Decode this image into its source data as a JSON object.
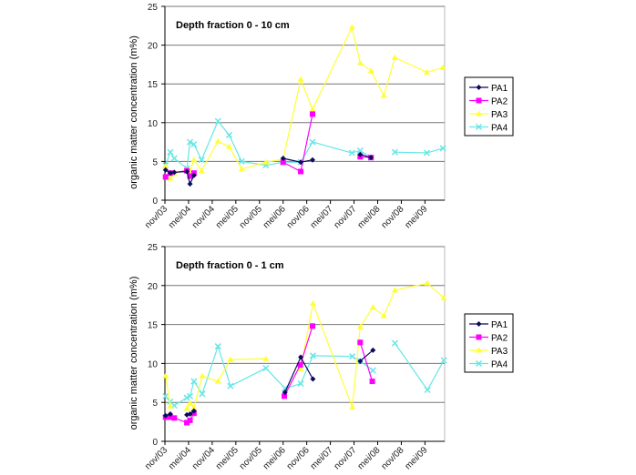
{
  "chart_data": [
    {
      "type": "line",
      "title": "Depth fraction  0 - 10 cm",
      "xlabel": "",
      "ylabel": "organic matter concentration (m%)",
      "ylim": [
        0,
        25
      ],
      "yticks": [
        "0",
        "5",
        "10",
        "15",
        "20",
        "25"
      ],
      "xticks": [
        "nov/03",
        "mei/04",
        "nov/04",
        "mei/05",
        "nov/05",
        "mei/06",
        "nov/06",
        "mei/07",
        "nov/07",
        "mei/08",
        "nov/08",
        "mei/09"
      ],
      "grid": "horizontal",
      "legend": "right",
      "series": [
        {
          "name": "PA1",
          "color": "#0b0b5c",
          "marker": "diamond",
          "points": [
            [
              "2003-11-06",
              3.9
            ],
            [
              "2003-12-12",
              3.5
            ],
            [
              "2004-01-12",
              3.6
            ],
            [
              "2004-04-18",
              3.7
            ],
            [
              "2004-05-12",
              2.1
            ],
            [
              "2004-06-12",
              3.2
            ],
            null,
            [
              "2006-05-01",
              5.4
            ],
            [
              "2006-09-15",
              4.9
            ],
            [
              "2006-12-15",
              5.2
            ],
            null,
            [
              "2007-12-18",
              5.9
            ],
            [
              "2008-03-10",
              5.5
            ]
          ]
        },
        {
          "name": "PA2",
          "color": "#ff00ff",
          "marker": "square",
          "points": [
            [
              "2003-11-06",
              3.0
            ],
            [
              "2003-12-12",
              3.5
            ],
            [
              "2004-04-18",
              3.8
            ],
            [
              "2004-05-12",
              3.1
            ],
            [
              "2004-06-12",
              3.5
            ],
            null,
            [
              "2006-05-01",
              4.9
            ],
            [
              "2006-09-15",
              3.7
            ],
            [
              "2006-12-15",
              11.1
            ],
            null,
            [
              "2007-12-18",
              5.6
            ],
            [
              "2008-03-10",
              5.5
            ]
          ]
        },
        {
          "name": "PA3",
          "color": "#ffff33",
          "marker": "triangle",
          "points": [
            [
              "2003-11-06",
              4.4
            ],
            [
              "2003-12-12",
              2.8
            ],
            [
              "2004-01-12",
              3.4
            ],
            [
              "2004-04-18",
              3.9
            ],
            [
              "2004-05-12",
              3.8
            ],
            [
              "2004-06-12",
              5.2
            ],
            [
              "2004-08-10",
              3.8
            ],
            [
              "2004-12-15",
              7.6
            ],
            [
              "2005-03-10",
              6.9
            ],
            [
              "2005-06-15",
              4.0
            ],
            [
              "2005-12-20",
              4.9
            ],
            [
              "2006-05-01",
              5.3
            ],
            [
              "2006-09-15",
              15.6
            ],
            [
              "2006-12-15",
              11.7
            ],
            [
              "2007-10-15",
              22.3
            ],
            [
              "2007-12-18",
              17.7
            ],
            [
              "2008-03-10",
              16.7
            ],
            [
              "2008-06-18",
              13.5
            ],
            [
              "2008-09-12",
              18.4
            ],
            [
              "2009-05-15",
              16.5
            ],
            [
              "2009-09-18",
              17.1
            ]
          ]
        },
        {
          "name": "PA4",
          "color": "#66e6e6",
          "marker": "x",
          "points": [
            [
              "2003-11-06",
              4.5
            ],
            [
              "2003-12-12",
              6.2
            ],
            [
              "2004-01-12",
              5.4
            ],
            [
              "2004-04-18",
              4.1
            ],
            [
              "2004-05-12",
              7.5
            ],
            [
              "2004-06-12",
              7.2
            ],
            [
              "2004-08-10",
              5.2
            ],
            [
              "2004-12-15",
              10.2
            ],
            [
              "2005-03-10",
              8.4
            ],
            [
              "2005-06-15",
              5.0
            ],
            [
              "2005-12-20",
              4.5
            ],
            [
              "2006-05-01",
              4.9
            ],
            [
              "2006-09-15",
              4.9
            ],
            [
              "2006-12-15",
              7.5
            ],
            [
              "2007-10-15",
              6.1
            ],
            [
              "2007-12-18",
              6.4
            ],
            [
              "2008-03-10",
              5.5
            ],
            null,
            [
              "2008-09-12",
              6.2
            ],
            [
              "2009-05-15",
              6.1
            ],
            [
              "2009-09-18",
              6.7
            ]
          ]
        }
      ]
    },
    {
      "type": "line",
      "title": "Depth fraction  0 - 1 cm",
      "xlabel": "",
      "ylabel": "organic matter concentration (m%)",
      "ylim": [
        0,
        25
      ],
      "yticks": [
        "0",
        "5",
        "10",
        "15",
        "20",
        "25"
      ],
      "xticks": [
        "nov/03",
        "mei/04",
        "nov/04",
        "mei/05",
        "nov/05",
        "mei/06",
        "nov/06",
        "mei/07",
        "nov/07",
        "mei/08",
        "nov/08",
        "mei/09"
      ],
      "grid": "horizontal",
      "legend": "right",
      "series": [
        {
          "name": "PA1",
          "color": "#0b0b5c",
          "marker": "diamond",
          "points": [
            [
              "2003-11-06",
              3.3
            ],
            [
              "2003-12-12",
              3.5
            ],
            null,
            [
              "2004-04-18",
              3.4
            ],
            [
              "2004-05-12",
              3.5
            ],
            [
              "2004-06-12",
              3.9
            ],
            null,
            [
              "2006-05-15",
              6.3
            ],
            [
              "2006-09-15",
              10.8
            ],
            [
              "2006-12-18",
              8.0
            ],
            null,
            [
              "2007-12-18",
              10.3
            ],
            [
              "2008-03-25",
              11.7
            ]
          ]
        },
        {
          "name": "PA2",
          "color": "#ff00ff",
          "marker": "square",
          "points": [
            [
              "2003-11-06",
              3.1
            ],
            [
              "2003-12-12",
              3.1
            ],
            [
              "2004-01-12",
              3.0
            ],
            [
              "2004-04-18",
              2.4
            ],
            [
              "2004-05-12",
              2.7
            ],
            [
              "2004-06-12",
              3.6
            ],
            null,
            [
              "2006-05-10",
              5.8
            ],
            [
              "2006-09-12",
              9.8
            ],
            [
              "2006-12-15",
              14.8
            ],
            null,
            [
              "2007-12-18",
              12.7
            ],
            [
              "2008-03-20",
              7.7
            ]
          ]
        },
        {
          "name": "PA3",
          "color": "#ffff33",
          "marker": "triangle",
          "points": [
            [
              "2003-11-06",
              8.4
            ],
            [
              "2003-12-12",
              4.5
            ],
            null,
            [
              "2004-04-18",
              4.2
            ],
            [
              "2004-05-12",
              4.9
            ],
            [
              "2004-06-12",
              4.3
            ],
            [
              "2004-08-15",
              8.4
            ],
            [
              "2004-12-15",
              7.7
            ],
            [
              "2005-03-20",
              10.5
            ],
            [
              "2005-12-20",
              10.6
            ],
            null,
            [
              "2006-09-15",
              9.3
            ],
            [
              "2006-12-18",
              17.7
            ],
            [
              "2007-10-18",
              4.4
            ],
            [
              "2007-12-18",
              14.7
            ],
            [
              "2008-03-25",
              17.2
            ],
            [
              "2008-06-18",
              16.1
            ],
            [
              "2008-09-12",
              19.4
            ],
            [
              "2009-05-20",
              20.3
            ],
            [
              "2009-09-25",
              18.4
            ]
          ]
        },
        {
          "name": "PA4",
          "color": "#66e6e6",
          "marker": "x",
          "points": [
            [
              "2003-11-06",
              5.8
            ],
            [
              "2003-12-12",
              5.1
            ],
            [
              "2004-01-12",
              4.6
            ],
            [
              "2004-04-18",
              5.6
            ],
            [
              "2004-05-12",
              5.8
            ],
            [
              "2004-06-12",
              7.7
            ],
            [
              "2004-08-15",
              6.1
            ],
            [
              "2004-12-15",
              12.2
            ],
            [
              "2005-03-20",
              7.1
            ],
            [
              "2005-12-20",
              9.4
            ],
            [
              "2006-05-15",
              6.8
            ],
            [
              "2006-09-15",
              7.4
            ],
            [
              "2006-12-18",
              11.0
            ],
            [
              "2007-10-18",
              10.9
            ],
            [
              "2007-12-18",
              10.3
            ],
            [
              "2008-03-25",
              9.1
            ],
            null,
            [
              "2008-09-12",
              12.6
            ],
            [
              "2009-05-20",
              6.6
            ],
            [
              "2009-09-25",
              10.4
            ]
          ]
        }
      ]
    }
  ]
}
